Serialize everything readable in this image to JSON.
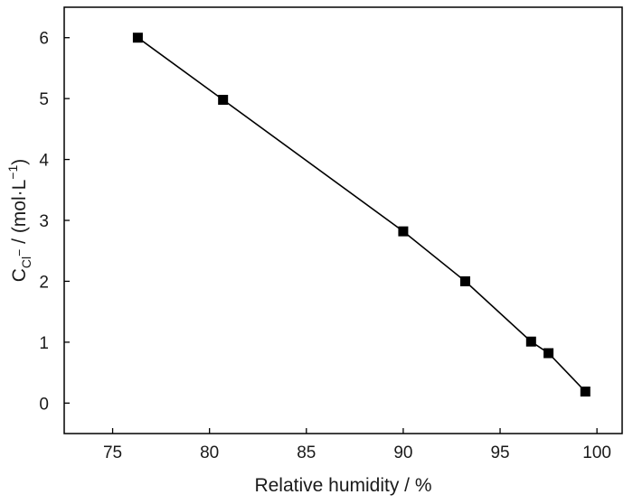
{
  "chart_data": {
    "type": "line",
    "xlabel": "Relative humidity / %",
    "ylabel": {
      "main": "C",
      "subscript": "Cl",
      "sub_superscript": "−",
      "rest": " / (mol·L",
      "superscript": "−1",
      "close": ")"
    },
    "xlim": [
      72.5,
      101.3
    ],
    "ylim": [
      -0.5,
      6.5
    ],
    "xticks": [
      75,
      80,
      85,
      90,
      95,
      100
    ],
    "yticks": [
      0,
      1,
      2,
      3,
      4,
      5,
      6
    ],
    "grid": false,
    "marker": "square",
    "colors": {
      "line": "#000000",
      "marker": "#000000",
      "frame": "#000000"
    },
    "series": [
      {
        "x": [
          76.3,
          80.7,
          90.0,
          93.2,
          96.6,
          97.5,
          99.4
        ],
        "y": [
          6.0,
          4.98,
          2.82,
          2.0,
          1.01,
          0.82,
          0.19
        ]
      }
    ]
  }
}
